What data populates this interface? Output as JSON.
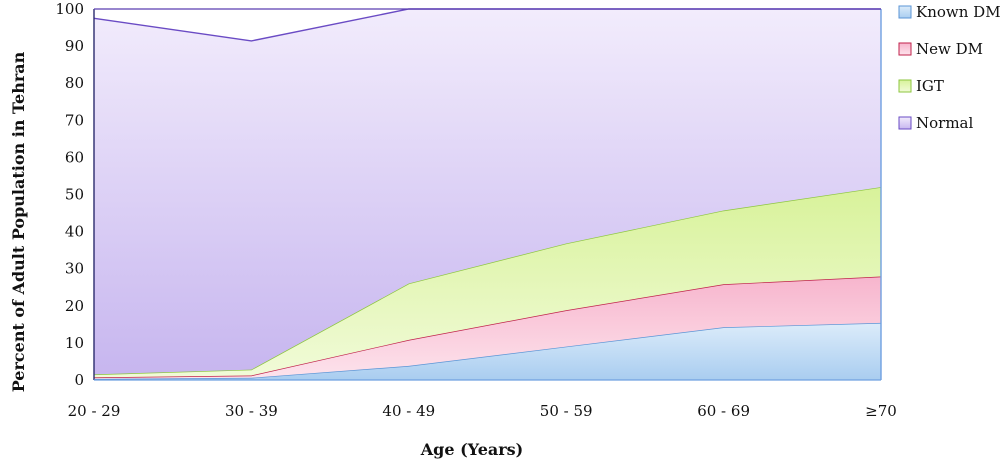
{
  "chart_data": {
    "type": "area",
    "stacked": true,
    "categories": [
      "20 - 29",
      "30 - 39",
      "40 - 49",
      "50 - 59",
      "60 - 69",
      "≥70"
    ],
    "xlabel": "Age (Years)",
    "ylabel": "Percent of Adult Population in Tehran",
    "ylim": [
      0,
      100
    ],
    "yticks": [
      0,
      10,
      20,
      30,
      40,
      50,
      60,
      70,
      80,
      90,
      100
    ],
    "grid": false,
    "legend_position": "right",
    "series": [
      {
        "name": "Known DM",
        "values": [
          0.3,
          0.6,
          3.8,
          9.0,
          14.2,
          15.4
        ],
        "fill_top": "#dcecfa",
        "fill_bottom": "#a9cdf0",
        "line": "#5b95d6"
      },
      {
        "name": "New DM",
        "values": [
          0.4,
          0.6,
          7.0,
          9.8,
          11.6,
          12.5
        ],
        "fill_top": "#f7b5cd",
        "fill_bottom": "#fde3ec",
        "line": "#c0224b"
      },
      {
        "name": "IGT",
        "values": [
          0.8,
          1.6,
          15.2,
          18.0,
          19.9,
          24.1
        ],
        "fill_top": "#d8f29a",
        "fill_bottom": "#f1fbd8",
        "line": "#8dc63f"
      },
      {
        "name": "Normal",
        "values": [
          96.0,
          88.6,
          74.0,
          63.2,
          54.3,
          48.0
        ],
        "fill_top": "#f2ecfc",
        "fill_bottom": "#c7b6ef",
        "line": "#6a4bc4"
      }
    ]
  }
}
